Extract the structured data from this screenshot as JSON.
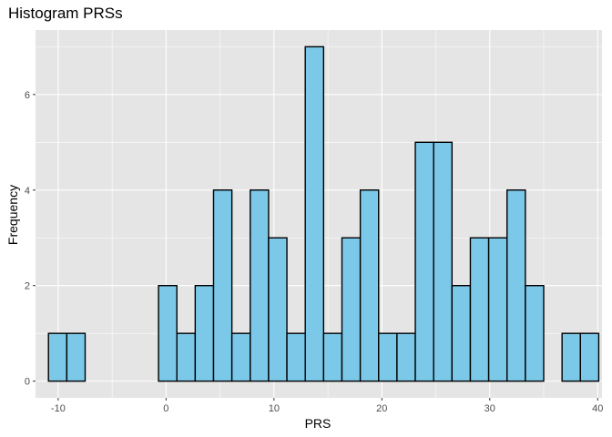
{
  "chart_data": {
    "type": "bar",
    "title": "Histogram PRSs",
    "xlabel": "PRS",
    "ylabel": "Frequency",
    "xlim": [
      -12.1,
      40.4
    ],
    "ylim": [
      -0.35,
      7.35
    ],
    "x_ticks": [
      -10,
      0,
      10,
      20,
      30,
      40
    ],
    "y_ticks": [
      0,
      2,
      4,
      6
    ],
    "x_tick_labels": [
      "-10",
      "0",
      "10",
      "20",
      "30",
      "40"
    ],
    "y_tick_labels": [
      "0",
      "2",
      "4",
      "6"
    ],
    "bin_width": 1.7,
    "bin_starts": [
      -10.9,
      -9.2,
      -7.5,
      -5.8,
      -4.1,
      -2.4,
      -0.7,
      1.0,
      2.7,
      4.4,
      6.1,
      7.8,
      9.5,
      11.2,
      12.9,
      14.6,
      16.3,
      18.0,
      19.7,
      21.4,
      23.1,
      24.8,
      26.5,
      28.2,
      29.9,
      31.6,
      33.3,
      35.0,
      36.7,
      38.4
    ],
    "values": [
      1,
      1,
      0,
      0,
      0,
      0,
      2,
      1,
      2,
      4,
      1,
      4,
      3,
      1,
      7,
      1,
      3,
      4,
      1,
      1,
      5,
      5,
      2,
      3,
      3,
      4,
      2,
      0,
      1,
      1
    ],
    "grid": true,
    "panel_background": "#e5e5e5",
    "grid_color": "#ffffff",
    "bar_fill": "#7bc8e8",
    "bar_stroke": "#000000"
  }
}
